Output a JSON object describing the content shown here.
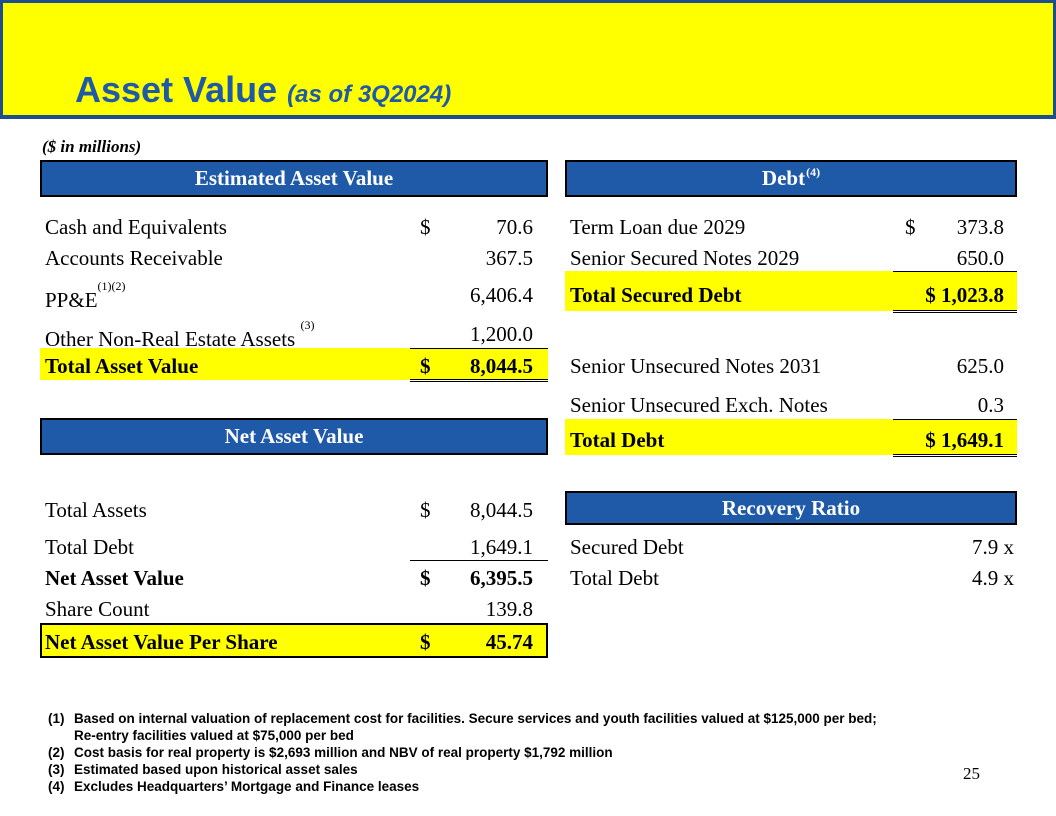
{
  "header": {
    "title": "Asset Value",
    "subtitle": "(as of 3Q2024)"
  },
  "units": "($ in millions)",
  "estimated_asset_value": {
    "heading": "Estimated Asset Value",
    "rows": [
      {
        "label": "Cash and Equivalents",
        "currency": "$",
        "value": "70.6"
      },
      {
        "label": "Accounts Receivable",
        "currency": "",
        "value": "367.5"
      },
      {
        "label": "PP&E",
        "sup": "(1)(2)",
        "currency": "",
        "value": "6,406.4"
      },
      {
        "label": "Other Non-Real Estate Assets ",
        "sup": "(3)",
        "currency": "",
        "value": "1,200.0"
      }
    ],
    "total": {
      "label": "Total Asset Value",
      "currency": "$",
      "value": "8,044.5"
    }
  },
  "net_asset_value": {
    "heading": "Net Asset Value",
    "rows": [
      {
        "label": "Total Assets",
        "currency": "$",
        "value": "8,044.5"
      },
      {
        "label": "Total Debt",
        "currency": "",
        "value": "1,649.1"
      },
      {
        "label": "Net Asset Value",
        "currency": "$",
        "value": "6,395.5"
      },
      {
        "label": "Share Count",
        "currency": "",
        "value": "139.8"
      }
    ],
    "per_share": {
      "label": "Net Asset Value Per Share",
      "currency": "$",
      "value": "45.74"
    }
  },
  "debt": {
    "heading": "Debt",
    "heading_sup": "(4)",
    "rows": [
      {
        "label": "Term Loan due 2029",
        "currency": "$",
        "value": "373.8"
      },
      {
        "label": "Senior Secured Notes 2029",
        "currency": "",
        "value": "650.0"
      }
    ],
    "total_secured": {
      "label": "Total Secured Debt",
      "value": "$ 1,023.8"
    },
    "unsecured_rows": [
      {
        "label": "Senior Unsecured Notes 2031",
        "value": "625.0"
      },
      {
        "label": "Senior Unsecured Exch. Notes",
        "value": "0.3"
      }
    ],
    "total": {
      "label": "Total Debt",
      "value": "$ 1,649.1"
    }
  },
  "recovery_ratio": {
    "heading": "Recovery Ratio",
    "rows": [
      {
        "label": "Secured Debt",
        "value": "7.9 x"
      },
      {
        "label": "Total Debt",
        "value": "4.9 x"
      }
    ]
  },
  "footnotes": [
    {
      "num": "(1)",
      "text": "Based on internal valuation of replacement cost for facilities. Secure services and youth facilities valued at $125,000 per bed;",
      "cont": "Re-entry facilities valued at $75,000 per bed"
    },
    {
      "num": "(2)",
      "text": "Cost basis for real property is $2,693 million and NBV of real property $1,792 million"
    },
    {
      "num": "(3)",
      "text": "Estimated based upon historical asset sales"
    },
    {
      "num": "(4)",
      "text": "Excludes Headquarters’ Mortgage and Finance leases"
    }
  ],
  "page_number": "25"
}
